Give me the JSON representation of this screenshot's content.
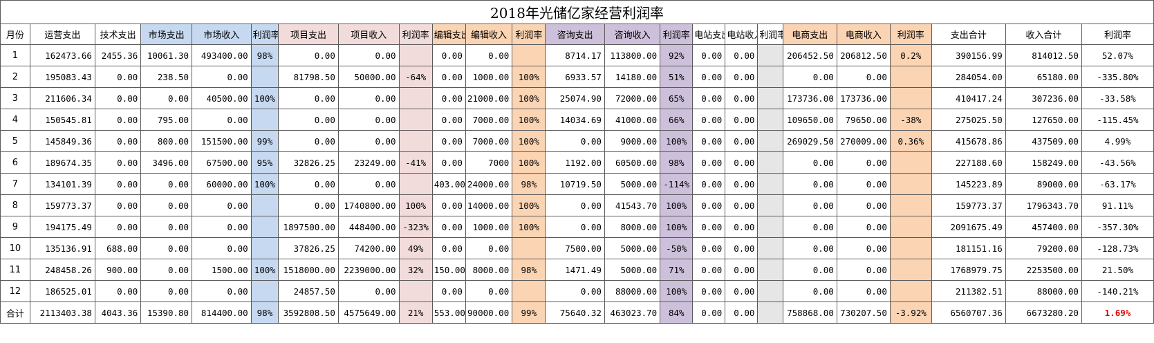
{
  "title": "2018年光储亿家经营利润率",
  "headers": [
    "月份",
    "运营支出",
    "技术支出",
    "市场支出",
    "市场收入",
    "利润率",
    "项目支出",
    "项目收入",
    "利润率",
    "编辑支出",
    "编辑收入",
    "利润率",
    "咨询支出",
    "咨询收入",
    "利润率",
    "电站支出",
    "电站收入",
    "利润率",
    "电商支出",
    "电商收入",
    "利润率",
    "支出合计",
    "收入合计",
    "利润率"
  ],
  "rows": [
    [
      "1",
      "162473.66",
      "2455.36",
      "10061.30",
      "493400.00",
      "98%",
      "0.00",
      "0.00",
      "",
      "0.00",
      "0.00",
      "",
      "8714.17",
      "113800.00",
      "92%",
      "0.00",
      "0.00",
      "",
      "206452.50",
      "206812.50",
      "0.2%",
      "390156.99",
      "814012.50",
      "52.07%"
    ],
    [
      "2",
      "195083.43",
      "0.00",
      "238.50",
      "0.00",
      "",
      "81798.50",
      "50000.00",
      "-64%",
      "0.00",
      "1000.00",
      "100%",
      "6933.57",
      "14180.00",
      "51%",
      "0.00",
      "0.00",
      "",
      "0.00",
      "0.00",
      "",
      "284054.00",
      "65180.00",
      "-335.80%"
    ],
    [
      "3",
      "211606.34",
      "0.00",
      "0.00",
      "40500.00",
      "100%",
      "0.00",
      "0.00",
      "",
      "0.00",
      "21000.00",
      "100%",
      "25074.90",
      "72000.00",
      "65%",
      "0.00",
      "0.00",
      "",
      "173736.00",
      "173736.00",
      "",
      "410417.24",
      "307236.00",
      "-33.58%"
    ],
    [
      "4",
      "150545.81",
      "0.00",
      "795.00",
      "0.00",
      "",
      "0.00",
      "0.00",
      "",
      "0.00",
      "7000.00",
      "100%",
      "14034.69",
      "41000.00",
      "66%",
      "0.00",
      "0.00",
      "",
      "109650.00",
      "79650.00",
      "-38%",
      "275025.50",
      "127650.00",
      "-115.45%"
    ],
    [
      "5",
      "145849.36",
      "0.00",
      "800.00",
      "151500.00",
      "99%",
      "0.00",
      "0.00",
      "",
      "0.00",
      "7000.00",
      "100%",
      "0.00",
      "9000.00",
      "100%",
      "0.00",
      "0.00",
      "",
      "269029.50",
      "270009.00",
      "0.36%",
      "415678.86",
      "437509.00",
      "4.99%"
    ],
    [
      "6",
      "189674.35",
      "0.00",
      "3496.00",
      "67500.00",
      "95%",
      "32826.25",
      "23249.00",
      "-41%",
      "0.00",
      "7000",
      "100%",
      "1192.00",
      "60500.00",
      "98%",
      "0.00",
      "0.00",
      "",
      "0.00",
      "0.00",
      "",
      "227188.60",
      "158249.00",
      "-43.56%"
    ],
    [
      "7",
      "134101.39",
      "0.00",
      "0.00",
      "60000.00",
      "100%",
      "0.00",
      "0.00",
      "",
      "403.00",
      "24000.00",
      "98%",
      "10719.50",
      "5000.00",
      "-114%",
      "0.00",
      "0.00",
      "",
      "0.00",
      "0.00",
      "",
      "145223.89",
      "89000.00",
      "-63.17%"
    ],
    [
      "8",
      "159773.37",
      "0.00",
      "0.00",
      "0.00",
      "",
      "0.00",
      "1740800.00",
      "100%",
      "0.00",
      "14000.00",
      "100%",
      "0.00",
      "41543.70",
      "100%",
      "0.00",
      "0.00",
      "",
      "0.00",
      "0.00",
      "",
      "159773.37",
      "1796343.70",
      "91.11%"
    ],
    [
      "9",
      "194175.49",
      "0.00",
      "0.00",
      "0.00",
      "",
      "1897500.00",
      "448400.00",
      "-323%",
      "0.00",
      "1000.00",
      "100%",
      "0.00",
      "8000.00",
      "100%",
      "0.00",
      "0.00",
      "",
      "0.00",
      "0.00",
      "",
      "2091675.49",
      "457400.00",
      "-357.30%"
    ],
    [
      "10",
      "135136.91",
      "688.00",
      "0.00",
      "0.00",
      "",
      "37826.25",
      "74200.00",
      "49%",
      "0.00",
      "0.00",
      "",
      "7500.00",
      "5000.00",
      "-50%",
      "0.00",
      "0.00",
      "",
      "0.00",
      "0.00",
      "",
      "181151.16",
      "79200.00",
      "-128.73%"
    ],
    [
      "11",
      "248458.26",
      "900.00",
      "0.00",
      "1500.00",
      "100%",
      "1518000.00",
      "2239000.00",
      "32%",
      "150.00",
      "8000.00",
      "98%",
      "1471.49",
      "5000.00",
      "71%",
      "0.00",
      "0.00",
      "",
      "0.00",
      "0.00",
      "",
      "1768979.75",
      "2253500.00",
      "21.50%"
    ],
    [
      "12",
      "186525.01",
      "0.00",
      "0.00",
      "0.00",
      "",
      "24857.50",
      "0.00",
      "",
      "0.00",
      "0.00",
      "",
      "0.00",
      "88000.00",
      "100%",
      "0.00",
      "0.00",
      "",
      "0.00",
      "0.00",
      "",
      "211382.51",
      "88000.00",
      "-140.21%"
    ]
  ],
  "total_row": [
    "合计",
    "2113403.38",
    "4043.36",
    "15390.80",
    "814400.00",
    "98%",
    "3592808.50",
    "4575649.00",
    "21%",
    "553.00",
    "90000.00",
    "99%",
    "75640.32",
    "463023.70",
    "84%",
    "0.00",
    "0.00",
    "",
    "758868.00",
    "730207.50",
    "-3.92%",
    "6560707.36",
    "6673280.20",
    "1.69%"
  ],
  "colors": {
    "market_rate": "#c6d9f0",
    "project": "#f2dcdb",
    "edit": "#fbd4b4",
    "consult_rate": "#ccc0da",
    "station_rate": "#e6e6e6",
    "ecom": "#fbd4b4",
    "highlight_text": "#e00000"
  }
}
